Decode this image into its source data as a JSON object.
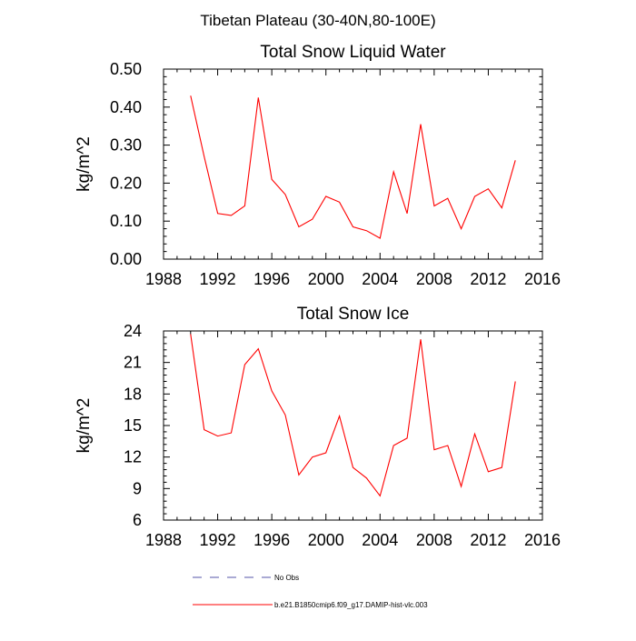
{
  "figure": {
    "title": "Tibetan Plateau (30-40N,80-100E)"
  },
  "chart_data": [
    {
      "type": "line",
      "title": "Total Snow Liquid Water",
      "xlabel": "",
      "ylabel": "kg/m^2",
      "xlim": [
        1988,
        2016
      ],
      "ylim": [
        0.0,
        0.5
      ],
      "xticks": [
        1988,
        1992,
        1996,
        2000,
        2004,
        2008,
        2012,
        2016
      ],
      "xtick_labels": [
        "1988",
        "1992",
        "1996",
        "2000",
        "2004",
        "2008",
        "2012",
        "2016"
      ],
      "yticks": [
        0.0,
        0.1,
        0.2,
        0.3,
        0.4,
        0.5
      ],
      "ytick_labels": [
        "0.00",
        "0.10",
        "0.20",
        "0.30",
        "0.40",
        "0.50"
      ],
      "grid": false,
      "series": [
        {
          "name": "b.e21.B1850cmip6.f09_g17.DAMIP-hist-vlc.003",
          "color": "#ff0000",
          "x": [
            1990,
            1991,
            1992,
            1993,
            1994,
            1995,
            1996,
            1997,
            1998,
            1999,
            2000,
            2001,
            2002,
            2003,
            2004,
            2005,
            2006,
            2007,
            2008,
            2009,
            2010,
            2011,
            2012,
            2013,
            2014
          ],
          "y": [
            0.43,
            0.27,
            0.12,
            0.115,
            0.14,
            0.425,
            0.21,
            0.17,
            0.085,
            0.105,
            0.165,
            0.15,
            0.085,
            0.075,
            0.055,
            0.23,
            0.12,
            0.355,
            0.14,
            0.16,
            0.08,
            0.165,
            0.185,
            0.135,
            0.26
          ]
        }
      ]
    },
    {
      "type": "line",
      "title": "Total Snow Ice",
      "xlabel": "",
      "ylabel": "kg/m^2",
      "xlim": [
        1988,
        2016
      ],
      "ylim": [
        6,
        24
      ],
      "xticks": [
        1988,
        1992,
        1996,
        2000,
        2004,
        2008,
        2012,
        2016
      ],
      "xtick_labels": [
        "1988",
        "1992",
        "1996",
        "2000",
        "2004",
        "2008",
        "2012",
        "2016"
      ],
      "yticks": [
        6,
        9,
        12,
        15,
        18,
        21,
        24
      ],
      "ytick_labels": [
        "6",
        "9",
        "12",
        "15",
        "18",
        "21",
        "24"
      ],
      "grid": false,
      "series": [
        {
          "name": "b.e21.B1850cmip6.f09_g17.DAMIP-hist-vlc.003",
          "color": "#ff0000",
          "x": [
            1990,
            1991,
            1992,
            1993,
            1994,
            1995,
            1996,
            1997,
            1998,
            1999,
            2000,
            2001,
            2002,
            2003,
            2004,
            2005,
            2006,
            2007,
            2008,
            2009,
            2010,
            2011,
            2012,
            2013,
            2014
          ],
          "y": [
            23.7,
            14.6,
            14.0,
            14.3,
            20.8,
            22.3,
            18.3,
            16.0,
            10.3,
            12.0,
            12.4,
            15.9,
            11.0,
            10.0,
            8.3,
            13.1,
            13.8,
            23.2,
            12.7,
            13.1,
            9.2,
            14.2,
            10.6,
            11.0,
            19.2
          ]
        }
      ]
    }
  ],
  "legend": {
    "placement": "bottom",
    "items": [
      {
        "label": "No Obs",
        "style": "dashed",
        "color": "#5555aa"
      },
      {
        "label": "b.e21.B1850cmip6.f09_g17.DAMIP-hist-vlc.003",
        "style": "solid",
        "color": "#ff0000"
      }
    ]
  }
}
